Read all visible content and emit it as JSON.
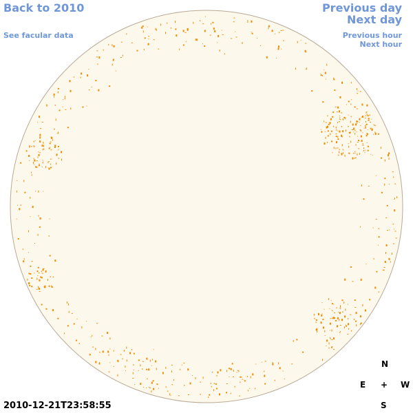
{
  "nav": {
    "back": "Back to 2010",
    "facular": "See facular data",
    "prev_day": "Previous day",
    "next_day": "Next day",
    "prev_hour": "Previous hour",
    "next_hour": "Next hour"
  },
  "compass": {
    "north": "N",
    "east": "E",
    "center": "+",
    "west": "W",
    "south": "S"
  },
  "timestamp": "2010-12-21T23:58:55",
  "colors": {
    "link": "#6f97d8",
    "disk_fill": "#fdf8ec",
    "disk_edge": "#b8a996",
    "facula": "#f08c00"
  }
}
